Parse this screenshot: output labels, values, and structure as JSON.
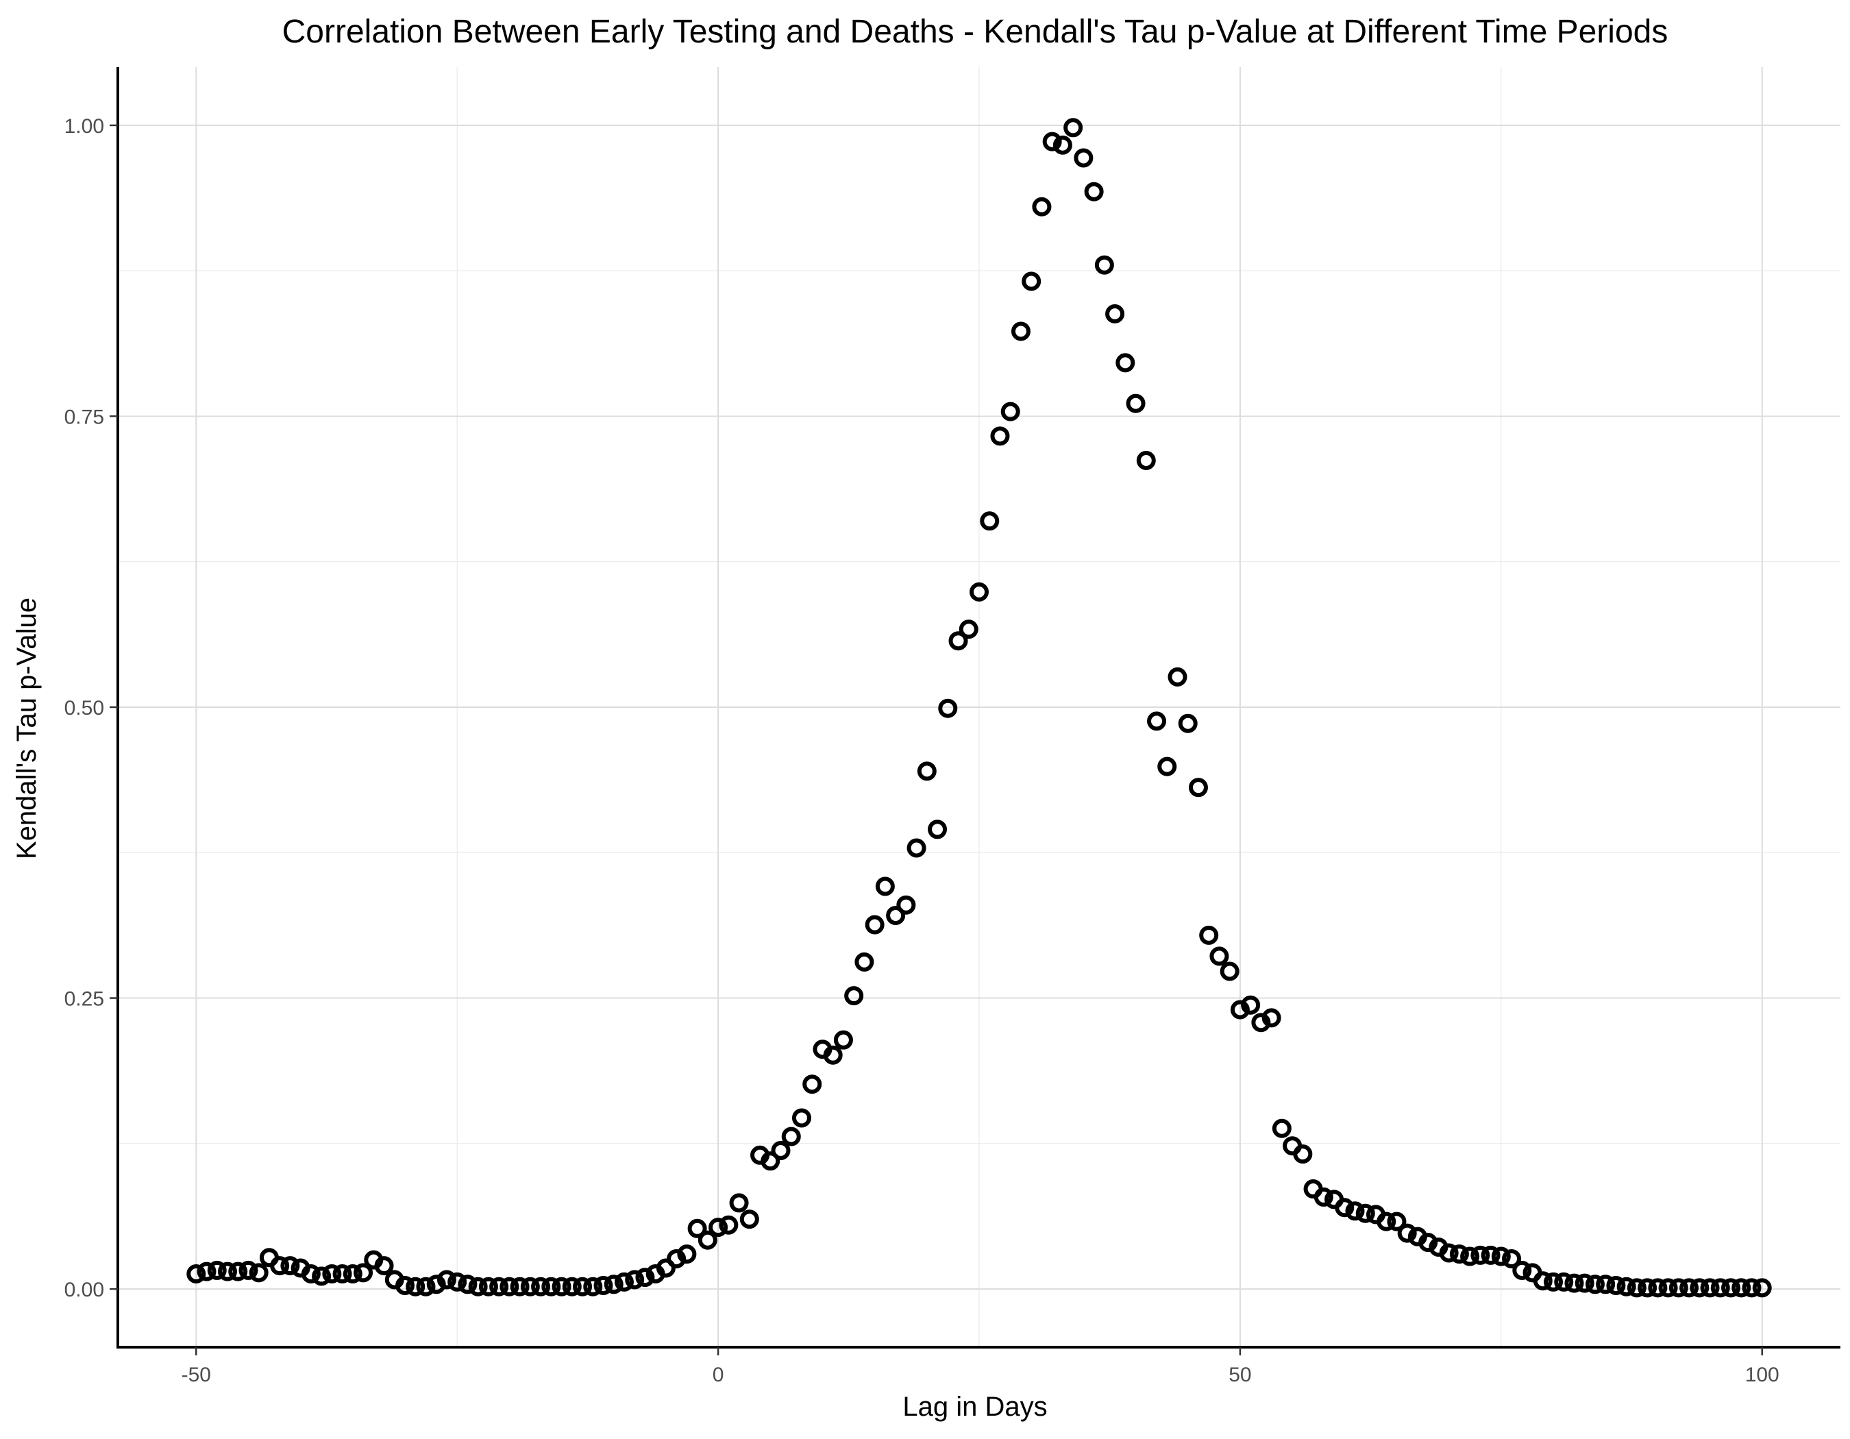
{
  "chart_data": {
    "type": "scatter",
    "title": "Correlation Between Early Testing and Deaths - Kendall's Tau p-Value at Different Time Periods",
    "xlabel": "Lag in Days",
    "ylabel": "Kendall's Tau p-Value",
    "xlim": [
      -57.5,
      107.5
    ],
    "ylim": [
      -0.05,
      1.05
    ],
    "x_ticks": [
      -50,
      0,
      50,
      100
    ],
    "x_tick_labels": [
      "-50",
      "0",
      "50",
      "100"
    ],
    "x_minor_ticks": [
      -25,
      25,
      75
    ],
    "y_ticks": [
      0,
      0.25,
      0.5,
      0.75,
      1.0
    ],
    "y_tick_labels": [
      "0.00",
      "0.25",
      "0.50",
      "0.75",
      "1.00"
    ],
    "y_minor_ticks": [
      0.125,
      0.375,
      0.625,
      0.875
    ],
    "grid": true,
    "legend": "none",
    "point_shape": "open-circle",
    "point_color": "#000000",
    "x": [
      -50,
      -49,
      -48,
      -47,
      -46,
      -45,
      -44,
      -43,
      -42,
      -41,
      -40,
      -39,
      -38,
      -37,
      -36,
      -35,
      -34,
      -33,
      -32,
      -31,
      -30,
      -29,
      -28,
      -27,
      -26,
      -25,
      -24,
      -23,
      -22,
      -21,
      -20,
      -19,
      -18,
      -17,
      -16,
      -15,
      -14,
      -13,
      -12,
      -11,
      -10,
      -9,
      -8,
      -7,
      -6,
      -5,
      -4,
      -3,
      -2,
      -1,
      0,
      1,
      2,
      3,
      4,
      5,
      6,
      7,
      8,
      9,
      10,
      11,
      12,
      13,
      14,
      15,
      16,
      17,
      18,
      19,
      20,
      21,
      22,
      23,
      24,
      25,
      26,
      27,
      28,
      29,
      30,
      31,
      32,
      33,
      34,
      35,
      36,
      37,
      38,
      39,
      40,
      41,
      42,
      43,
      44,
      45,
      46,
      47,
      48,
      49,
      50,
      51,
      52,
      53,
      54,
      55,
      56,
      57,
      58,
      59,
      60,
      61,
      62,
      63,
      64,
      65,
      66,
      67,
      68,
      69,
      70,
      71,
      72,
      73,
      74,
      75,
      76,
      77,
      78,
      79,
      80,
      81,
      82,
      83,
      84,
      85,
      86,
      87,
      88,
      89,
      90,
      91,
      92,
      93,
      94,
      95,
      96,
      97,
      98,
      99,
      100
    ],
    "y": [
      0.013,
      0.015,
      0.016,
      0.015,
      0.015,
      0.016,
      0.014,
      0.027,
      0.02,
      0.02,
      0.018,
      0.013,
      0.011,
      0.013,
      0.013,
      0.013,
      0.014,
      0.025,
      0.02,
      0.008,
      0.003,
      0.002,
      0.002,
      0.004,
      0.008,
      0.006,
      0.004,
      0.002,
      0.002,
      0.002,
      0.002,
      0.002,
      0.002,
      0.002,
      0.002,
      0.002,
      0.002,
      0.002,
      0.002,
      0.003,
      0.004,
      0.006,
      0.008,
      0.01,
      0.013,
      0.018,
      0.026,
      0.03,
      0.052,
      0.042,
      0.053,
      0.055,
      0.074,
      0.06,
      0.115,
      0.11,
      0.119,
      0.131,
      0.147,
      0.176,
      0.206,
      0.201,
      0.214,
      0.252,
      0.281,
      0.313,
      0.346,
      0.321,
      0.33,
      0.379,
      0.445,
      0.395,
      0.499,
      0.557,
      0.567,
      0.599,
      0.66,
      0.733,
      0.754,
      0.823,
      0.866,
      0.93,
      0.986,
      0.983,
      0.998,
      0.972,
      0.943,
      0.88,
      0.838,
      0.796,
      0.761,
      0.712,
      0.488,
      0.449,
      0.526,
      0.486,
      0.431,
      0.304,
      0.286,
      0.273,
      0.24,
      0.244,
      0.229,
      0.233,
      0.138,
      0.123,
      0.116,
      0.086,
      0.079,
      0.077,
      0.07,
      0.067,
      0.065,
      0.064,
      0.058,
      0.058,
      0.048,
      0.045,
      0.04,
      0.036,
      0.031,
      0.03,
      0.028,
      0.029,
      0.029,
      0.028,
      0.026,
      0.016,
      0.014,
      0.007,
      0.006,
      0.006,
      0.005,
      0.005,
      0.004,
      0.004,
      0.003,
      0.002,
      0.001,
      0.001,
      0.001,
      0.001,
      0.001,
      0.001,
      0.001,
      0.001,
      0.001,
      0.001,
      0.001,
      0.001,
      0.001
    ]
  }
}
